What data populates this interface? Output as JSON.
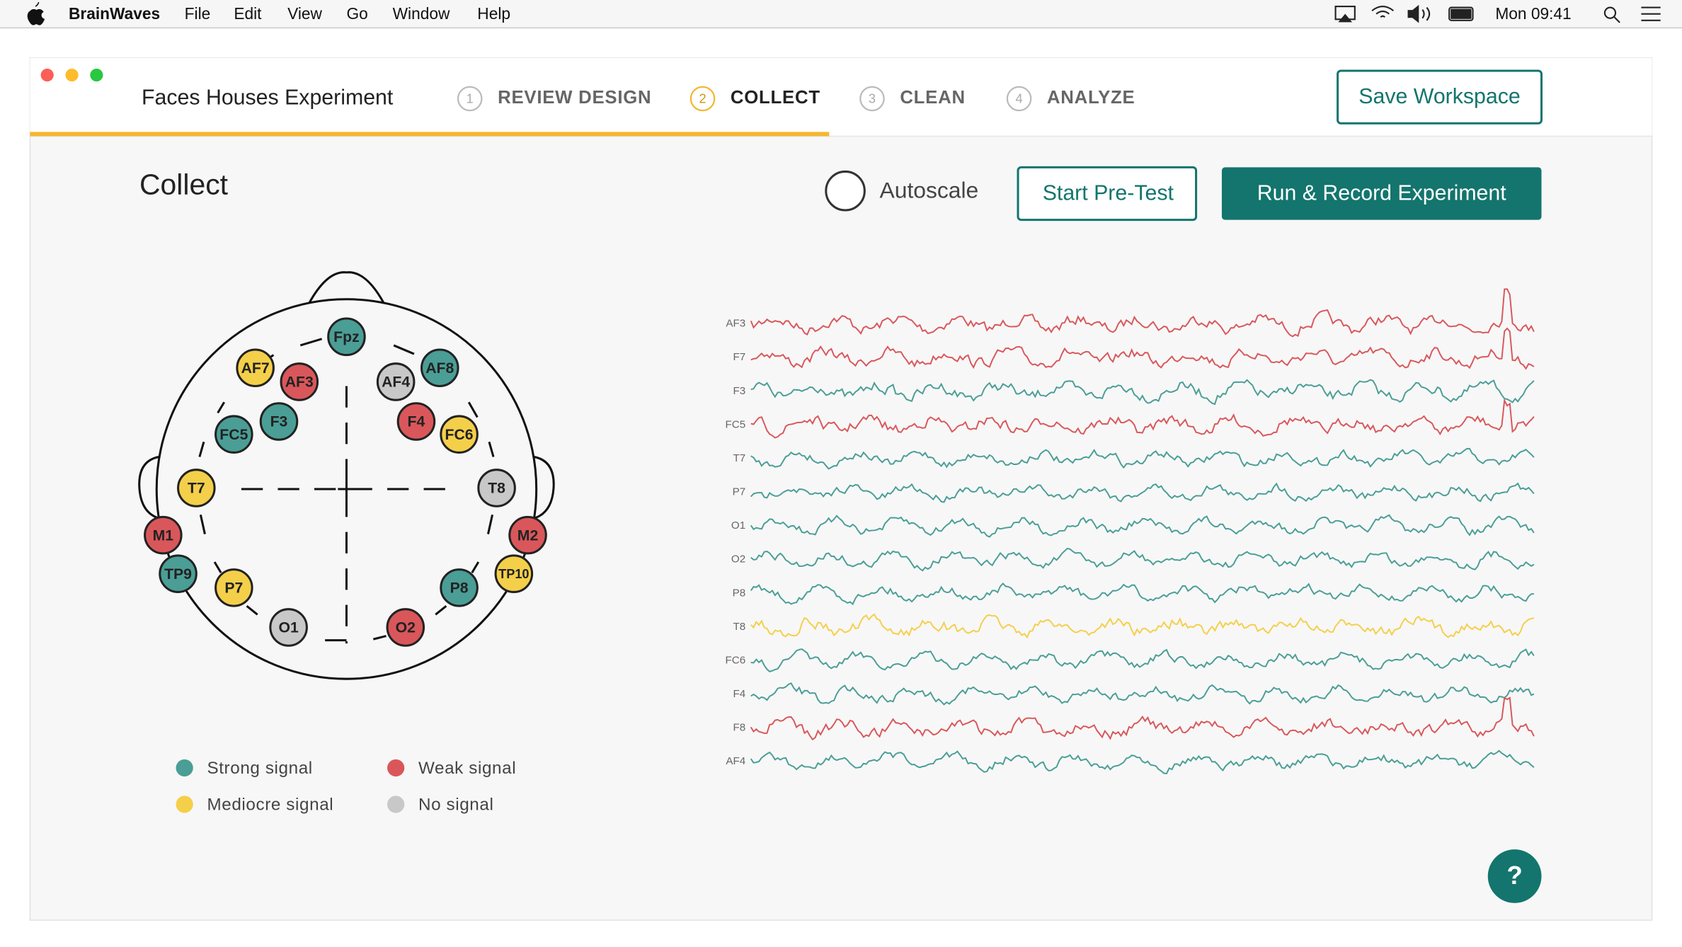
{
  "menu_bar": {
    "app": "BrainWaves",
    "items": [
      "File",
      "Edit",
      "View",
      "Go",
      "Window",
      "Help"
    ],
    "clock": "Mon 09:41"
  },
  "window": {
    "title": "Faces Houses Experiment",
    "steps": [
      {
        "number": "1",
        "label": "REVIEW DESIGN"
      },
      {
        "number": "2",
        "label": "COLLECT"
      },
      {
        "number": "3",
        "label": "CLEAN"
      },
      {
        "number": "4",
        "label": "ANALYZE"
      }
    ],
    "active_step": 1,
    "save_button": "Save Workspace"
  },
  "collect": {
    "heading": "Collect",
    "autoscale": "Autoscale",
    "pretest_button": "Start Pre-Test",
    "run_button": "Run & Record Experiment",
    "help": "?"
  },
  "legend": [
    {
      "label": "Strong signal",
      "color": "#4a9e96"
    },
    {
      "label": "Weak signal",
      "color": "#d9575b"
    },
    {
      "label": "Mediocre signal",
      "color": "#f4cf4a"
    },
    {
      "label": "No signal",
      "color": "#c8c8c8"
    }
  ],
  "electrodes": [
    {
      "label": "Fpz",
      "signal": 0
    },
    {
      "label": "AF7",
      "signal": 2
    },
    {
      "label": "AF3",
      "signal": 1
    },
    {
      "label": "AF4",
      "signal": 3
    },
    {
      "label": "AF8",
      "signal": 0
    },
    {
      "label": "F3",
      "signal": 0
    },
    {
      "label": "F4",
      "signal": 1
    },
    {
      "label": "FC5",
      "signal": 0
    },
    {
      "label": "FC6",
      "signal": 2
    },
    {
      "label": "T7",
      "signal": 2
    },
    {
      "label": "T8",
      "signal": 3
    },
    {
      "label": "M1",
      "signal": 1
    },
    {
      "label": "M2",
      "signal": 1
    },
    {
      "label": "TP9",
      "signal": 0
    },
    {
      "label": "TP10",
      "signal": 2
    },
    {
      "label": "P7",
      "signal": 2
    },
    {
      "label": "P8",
      "signal": 0
    },
    {
      "label": "O1",
      "signal": 3
    },
    {
      "label": "O2",
      "signal": 1
    }
  ],
  "channels": [
    {
      "label": "AF3",
      "signal": 1
    },
    {
      "label": "F7",
      "signal": 1
    },
    {
      "label": "F3",
      "signal": 0
    },
    {
      "label": "FC5",
      "signal": 1
    },
    {
      "label": "T7",
      "signal": 0
    },
    {
      "label": "P7",
      "signal": 0
    },
    {
      "label": "O1",
      "signal": 0
    },
    {
      "label": "O2",
      "signal": 0
    },
    {
      "label": "P8",
      "signal": 0
    },
    {
      "label": "T8",
      "signal": 2
    },
    {
      "label": "FC6",
      "signal": 0
    },
    {
      "label": "F4",
      "signal": 0
    },
    {
      "label": "F8",
      "signal": 1
    },
    {
      "label": "AF4",
      "signal": 0
    }
  ]
}
